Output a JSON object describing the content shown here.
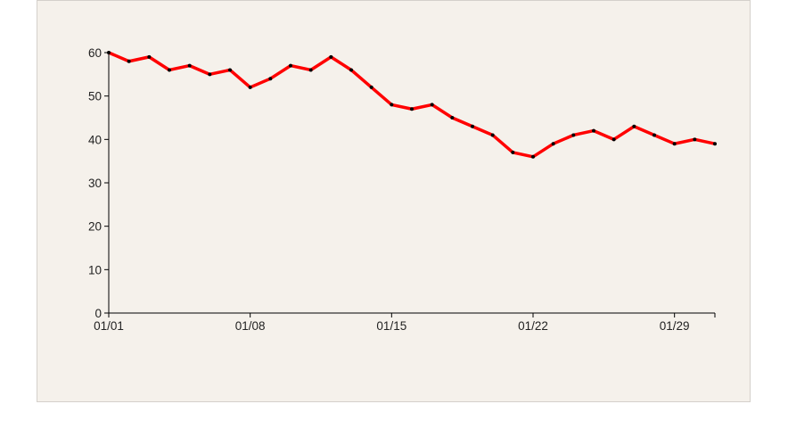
{
  "chart_data": {
    "type": "line",
    "x": [
      "01/01",
      "01/02",
      "01/03",
      "01/04",
      "01/05",
      "01/06",
      "01/07",
      "01/08",
      "01/09",
      "01/10",
      "01/11",
      "01/12",
      "01/13",
      "01/14",
      "01/15",
      "01/16",
      "01/17",
      "01/18",
      "01/19",
      "01/20",
      "01/21",
      "01/22",
      "01/23",
      "01/24",
      "01/25",
      "01/26",
      "01/27",
      "01/28",
      "01/29",
      "01/30",
      "01/31"
    ],
    "series": [
      {
        "values": [
          60,
          58,
          59,
          56,
          57,
          55,
          56,
          52,
          54,
          57,
          56,
          59,
          56,
          52,
          48,
          47,
          48,
          45,
          43,
          41,
          37,
          36,
          39,
          41,
          42,
          40,
          43,
          41,
          39,
          40,
          39
        ]
      }
    ],
    "y_ticks": [
      0,
      10,
      20,
      30,
      40,
      50,
      60
    ],
    "y_tick_labels": [
      "0",
      "10",
      "20",
      "30",
      "40",
      "50",
      "60"
    ],
    "x_tick_labels": [
      "01/01",
      "01/08",
      "01/15",
      "01/22",
      "01/29"
    ],
    "ylim": [
      0,
      60
    ],
    "title": "",
    "xlabel": "",
    "ylabel": "",
    "grid": false,
    "line_color": "#ff0000",
    "marker_color": "#000000",
    "background_color": "#f5f1eb"
  }
}
